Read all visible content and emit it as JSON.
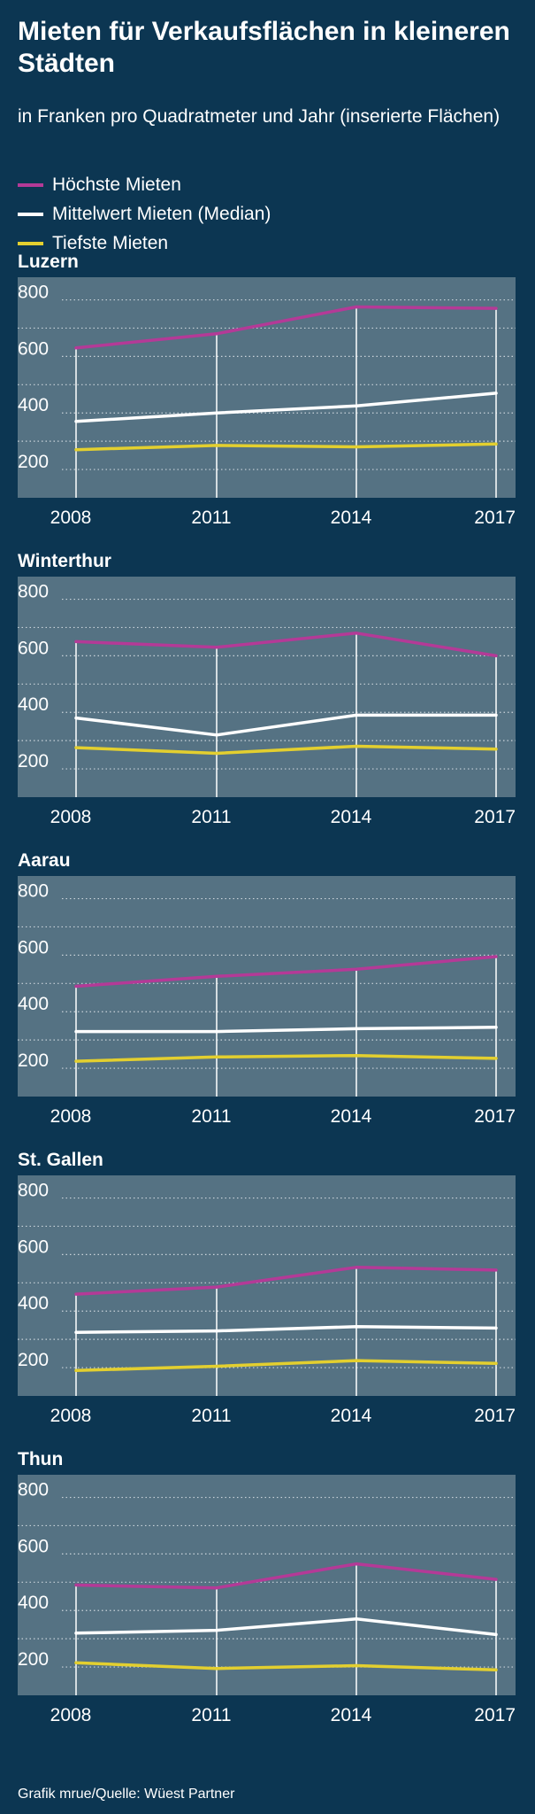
{
  "header": {
    "title": "Mieten für Verkaufsflächen in kleineren Städten",
    "subtitle": "in Franken pro Quadratmeter und Jahr (inserierte Flächen)"
  },
  "legend": {
    "items": [
      {
        "label": "Höchste Mieten",
        "color": "#b43a97"
      },
      {
        "label": "Mittelwert Mieten (Median)",
        "color": "#ffffff"
      },
      {
        "label": "Tiefste Mieten",
        "color": "#e3cf2f"
      }
    ]
  },
  "colors": {
    "background": "#0c3652",
    "plot_background": "#557283",
    "high": "#b43a97",
    "median": "#ffffff",
    "low": "#e3cf2f"
  },
  "chart_data": [
    {
      "type": "line",
      "title": "Luzern",
      "x": [
        "2008",
        "2011",
        "2014",
        "2017"
      ],
      "yticks": [
        200,
        400,
        600,
        800
      ],
      "ylim": [
        100,
        880
      ],
      "grid": true,
      "series": [
        {
          "name": "Höchste Mieten",
          "color": "#b43a97",
          "values": [
            630,
            680,
            775,
            770
          ]
        },
        {
          "name": "Mittelwert Mieten (Median)",
          "color": "#ffffff",
          "values": [
            370,
            400,
            425,
            470
          ]
        },
        {
          "name": "Tiefste Mieten",
          "color": "#e3cf2f",
          "values": [
            270,
            285,
            280,
            290
          ]
        }
      ]
    },
    {
      "type": "line",
      "title": "Winterthur",
      "x": [
        "2008",
        "2011",
        "2014",
        "2017"
      ],
      "yticks": [
        200,
        400,
        600,
        800
      ],
      "ylim": [
        100,
        880
      ],
      "grid": true,
      "series": [
        {
          "name": "Höchste Mieten",
          "color": "#b43a97",
          "values": [
            650,
            630,
            680,
            600
          ]
        },
        {
          "name": "Mittelwert Mieten (Median)",
          "color": "#ffffff",
          "values": [
            380,
            320,
            390,
            390
          ]
        },
        {
          "name": "Tiefste Mieten",
          "color": "#e3cf2f",
          "values": [
            275,
            255,
            280,
            270
          ]
        }
      ]
    },
    {
      "type": "line",
      "title": "Aarau",
      "x": [
        "2008",
        "2011",
        "2014",
        "2017"
      ],
      "yticks": [
        200,
        400,
        600,
        800
      ],
      "ylim": [
        100,
        880
      ],
      "grid": true,
      "series": [
        {
          "name": "Höchste Mieten",
          "color": "#b43a97",
          "values": [
            490,
            525,
            550,
            595
          ]
        },
        {
          "name": "Mittelwert Mieten (Median)",
          "color": "#ffffff",
          "values": [
            330,
            330,
            340,
            345
          ]
        },
        {
          "name": "Tiefste Mieten",
          "color": "#e3cf2f",
          "values": [
            225,
            240,
            245,
            235
          ]
        }
      ]
    },
    {
      "type": "line",
      "title": "St. Gallen",
      "x": [
        "2008",
        "2011",
        "2014",
        "2017"
      ],
      "yticks": [
        200,
        400,
        600,
        800
      ],
      "ylim": [
        100,
        880
      ],
      "grid": true,
      "series": [
        {
          "name": "Höchste Mieten",
          "color": "#b43a97",
          "values": [
            460,
            485,
            555,
            545
          ]
        },
        {
          "name": "Mittelwert Mieten (Median)",
          "color": "#ffffff",
          "values": [
            325,
            330,
            345,
            340
          ]
        },
        {
          "name": "Tiefste Mieten",
          "color": "#e3cf2f",
          "values": [
            190,
            205,
            225,
            215
          ]
        }
      ]
    },
    {
      "type": "line",
      "title": "Thun",
      "x": [
        "2008",
        "2011",
        "2014",
        "2017"
      ],
      "yticks": [
        200,
        400,
        600,
        800
      ],
      "ylim": [
        100,
        880
      ],
      "grid": true,
      "series": [
        {
          "name": "Höchste Mieten",
          "color": "#b43a97",
          "values": [
            490,
            480,
            565,
            510
          ]
        },
        {
          "name": "Mittelwert Mieten (Median)",
          "color": "#ffffff",
          "values": [
            320,
            330,
            370,
            315
          ]
        },
        {
          "name": "Tiefste Mieten",
          "color": "#e3cf2f",
          "values": [
            215,
            195,
            205,
            190
          ]
        }
      ]
    }
  ],
  "footer": {
    "source": "Grafik mrue/Quelle: Wüest Partner"
  }
}
